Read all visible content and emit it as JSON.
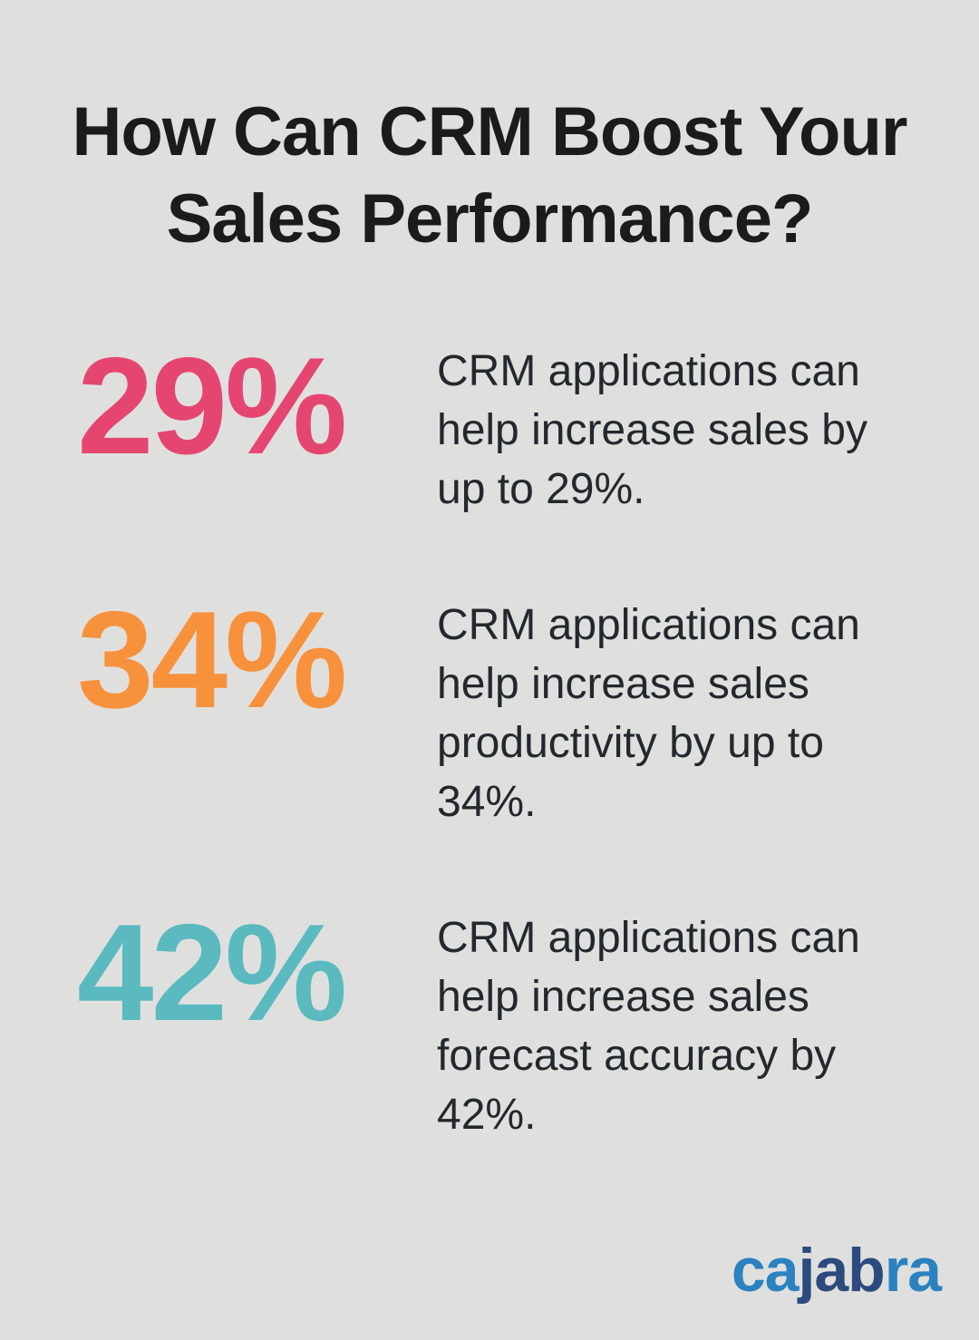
{
  "background": "#dfe0de",
  "title": {
    "line1": "How Can CRM Boost Your",
    "line2": "Sales Performance?",
    "color": "#1b1b1b"
  },
  "stats": [
    {
      "value": "29%",
      "color": "#e54671",
      "description": "CRM applications can help increase sales by up to 29%."
    },
    {
      "value": "34%",
      "color": "#f8913c",
      "description": "CRM applications can help increase sales productivity by up to 34%."
    },
    {
      "value": "42%",
      "color": "#5ababf",
      "description": "CRM applications can help increase sales forecast accuracy by 42%."
    }
  ],
  "text_color": "#23282e",
  "logo": {
    "name": "cajabra",
    "segments": [
      {
        "text": "ca",
        "color": "#2b82c1"
      },
      {
        "text": "jab",
        "color": "#2b4a7e"
      },
      {
        "text": "ra",
        "color": "#2b82c1"
      }
    ]
  }
}
